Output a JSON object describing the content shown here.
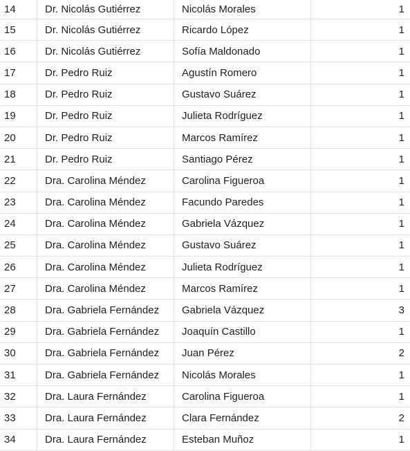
{
  "table": {
    "rows": [
      {
        "num": "14",
        "doctor": "Dr. Nicolás Gutiérrez",
        "patient": "Nicolás Morales",
        "count": "1"
      },
      {
        "num": "15",
        "doctor": "Dr. Nicolás Gutiérrez",
        "patient": "Ricardo López",
        "count": "1"
      },
      {
        "num": "16",
        "doctor": "Dr. Nicolás Gutiérrez",
        "patient": "Sofía Maldonado",
        "count": "1"
      },
      {
        "num": "17",
        "doctor": "Dr. Pedro Ruiz",
        "patient": "Agustín Romero",
        "count": "1"
      },
      {
        "num": "18",
        "doctor": "Dr. Pedro Ruiz",
        "patient": "Gustavo Suárez",
        "count": "1"
      },
      {
        "num": "19",
        "doctor": "Dr. Pedro Ruiz",
        "patient": "Julieta Rodríguez",
        "count": "1"
      },
      {
        "num": "20",
        "doctor": "Dr. Pedro Ruiz",
        "patient": "Marcos Ramírez",
        "count": "1"
      },
      {
        "num": "21",
        "doctor": "Dr. Pedro Ruiz",
        "patient": "Santiago Pérez",
        "count": "1"
      },
      {
        "num": "22",
        "doctor": "Dra. Carolina Méndez",
        "patient": "Carolina Figueroa",
        "count": "1"
      },
      {
        "num": "23",
        "doctor": "Dra. Carolina Méndez",
        "patient": "Facundo Paredes",
        "count": "1"
      },
      {
        "num": "24",
        "doctor": "Dra. Carolina Méndez",
        "patient": "Gabriela Vázquez",
        "count": "1"
      },
      {
        "num": "25",
        "doctor": "Dra. Carolina Méndez",
        "patient": "Gustavo Suárez",
        "count": "1"
      },
      {
        "num": "26",
        "doctor": "Dra. Carolina Méndez",
        "patient": "Julieta Rodríguez",
        "count": "1"
      },
      {
        "num": "27",
        "doctor": "Dra. Carolina Méndez",
        "patient": "Marcos Ramírez",
        "count": "1"
      },
      {
        "num": "28",
        "doctor": "Dra. Gabriela Fernández",
        "patient": "Gabriela Vázquez",
        "count": "3"
      },
      {
        "num": "29",
        "doctor": "Dra. Gabriela Fernández",
        "patient": "Joaquín Castillo",
        "count": "1"
      },
      {
        "num": "30",
        "doctor": "Dra. Gabriela Fernández",
        "patient": "Juan Pérez",
        "count": "2"
      },
      {
        "num": "31",
        "doctor": "Dra. Gabriela Fernández",
        "patient": "Nicolás Morales",
        "count": "1"
      },
      {
        "num": "32",
        "doctor": "Dra. Laura Fernández",
        "patient": "Carolina Figueroa",
        "count": "1"
      },
      {
        "num": "33",
        "doctor": "Dra. Laura Fernández",
        "patient": "Clara Fernández",
        "count": "2"
      },
      {
        "num": "34",
        "doctor": "Dra. Laura Fernández",
        "patient": "Esteban Muñoz",
        "count": "1"
      }
    ]
  }
}
